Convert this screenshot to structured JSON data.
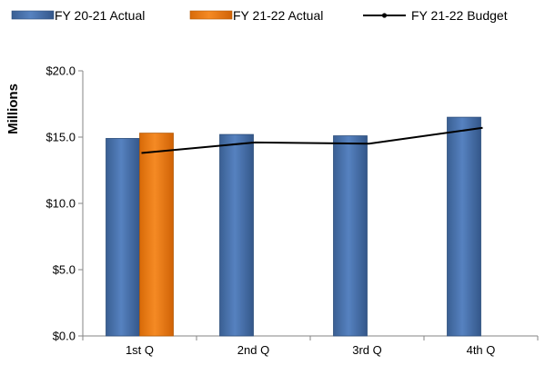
{
  "chart_data": {
    "type": "bar",
    "categories": [
      "1st Q",
      "2nd Q",
      "3rd Q",
      "4th Q"
    ],
    "series": [
      {
        "name": "FY 20-21 Actual",
        "kind": "bar",
        "color": "#4a74ad",
        "values": [
          14.9,
          15.2,
          15.1,
          16.5
        ]
      },
      {
        "name": "FY 21-22 Actual",
        "kind": "bar",
        "color": "#f07f16",
        "values": [
          15.3,
          null,
          null,
          null
        ]
      },
      {
        "name": "FY 21-22 Budget",
        "kind": "line",
        "color": "#000000",
        "values": [
          13.8,
          14.6,
          14.5,
          15.7
        ]
      }
    ],
    "title": "",
    "xlabel": "",
    "ylabel": "Millions",
    "ylim": [
      0,
      20
    ],
    "yticks": [
      0,
      5,
      10,
      15,
      20
    ],
    "ytick_labels": [
      "$0.0",
      "$5.0",
      "$10.0",
      "$15.0",
      "$20.0"
    ],
    "grid": false,
    "legend_position": "top"
  }
}
